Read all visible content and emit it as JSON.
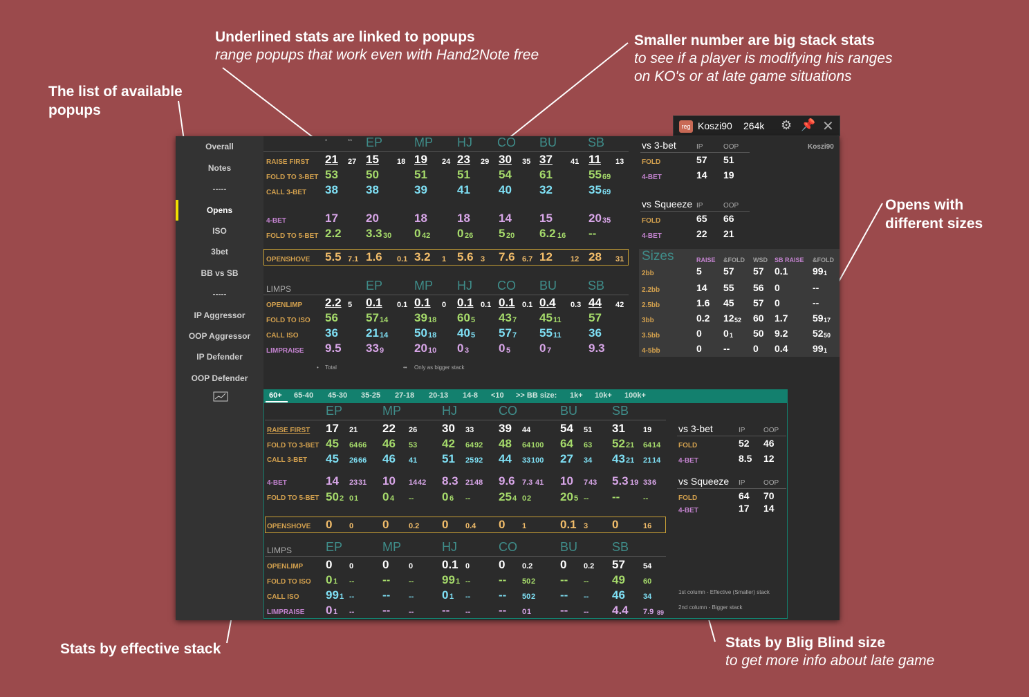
{
  "annotations": {
    "popups": {
      "title": "The list of available popups"
    },
    "underlined": {
      "title": "Underlined stats are linked to popups",
      "sub": "range popups that work even with Hand2Note free"
    },
    "smaller": {
      "title": "Smaller number are big stack stats",
      "sub1": "to see if a player is modifying his ranges",
      "sub2": "on KO's or at late game situations"
    },
    "opens": {
      "title1": "Opens with",
      "title2": "different sizes"
    },
    "effective": {
      "title": "Stats by effective stack"
    },
    "bbsize": {
      "title": "Stats by Blig Blind size",
      "sub": "to get more info about late game"
    }
  },
  "header": {
    "badge": "reg",
    "name": "Koszi90",
    "stack": "264k"
  },
  "sidebar": [
    "Overall",
    "Notes",
    "-----",
    "Opens",
    "ISO",
    "3bet",
    "BB vs SB",
    "-----",
    "IP Aggressor",
    "OOP Aggressor",
    "IP Defender",
    "OOP Defender"
  ],
  "top": {
    "marks": [
      "*",
      "**"
    ],
    "positions": [
      "EP",
      "MP",
      "HJ",
      "CO",
      "BU",
      "SB"
    ],
    "labels": {
      "rf": "RAISE FIRST",
      "f3": "FOLD TO 3-BET",
      "c3": "CALL 3-BET",
      "b4": "4-BET",
      "f5": "FOLD TO 5-BET",
      "os": "OPENSHOVE",
      "limps": "LIMPS",
      "ol": "OPENLIMP",
      "fi": "FOLD TO ISO",
      "ci": "CALL ISO",
      "lr": "LIMPRAISE"
    },
    "rf": [
      "21",
      "27",
      "15",
      "18",
      "19",
      "24",
      "23",
      "29",
      "30",
      "35",
      "37",
      "41",
      "11",
      "13"
    ],
    "f3": [
      "53",
      "50",
      "51",
      "51",
      "54",
      "61",
      "55",
      "69"
    ],
    "c3": [
      "38",
      "38",
      "39",
      "41",
      "40",
      "32",
      "35",
      "69"
    ],
    "b4": [
      "17",
      "20",
      "18",
      "18",
      "14",
      "15",
      "20",
      "35"
    ],
    "f5": [
      "2.2",
      "3.3",
      "30",
      "0",
      "42",
      "0",
      "26",
      "5",
      "20",
      "6.2",
      "16",
      "--"
    ],
    "os": [
      "5.5",
      "7.1",
      "1.6",
      "0.1",
      "3.2",
      "1",
      "5.6",
      "3",
      "7.6",
      "6.7",
      "12",
      "12",
      "28",
      "31"
    ],
    "ol": [
      "2.2",
      "5",
      "0.1",
      "0.1",
      "0.1",
      "0",
      "0.1",
      "0.1",
      "0.1",
      "0.1",
      "0.4",
      "0.3",
      "44",
      "42"
    ],
    "fi": [
      "56",
      "57",
      "14",
      "39",
      "18",
      "60",
      "5",
      "43",
      "7",
      "45",
      "11",
      "57"
    ],
    "ci": [
      "36",
      "21",
      "14",
      "50",
      "18",
      "40",
      "5",
      "57",
      "7",
      "55",
      "11",
      "36"
    ],
    "lr": [
      "9.5",
      "33",
      "9",
      "20",
      "10",
      "0",
      "3",
      "0",
      "5",
      "0",
      "7",
      "9.3"
    ],
    "foot1": "Total",
    "foot2": "Only as bigger stack"
  },
  "right": {
    "who": "Koszi90",
    "v3": {
      "title": "vs 3-bet",
      "ip": "IP",
      "oop": "OOP",
      "fold": "FOLD",
      "b4": "4-BET",
      "r1": [
        "57",
        "51"
      ],
      "r2": [
        "14",
        "19"
      ]
    },
    "vs": {
      "title": "vs Squeeze",
      "ip": "IP",
      "oop": "OOP",
      "fold": "FOLD",
      "b4": "4-BET",
      "r1": [
        "65",
        "66"
      ],
      "r2": [
        "22",
        "21"
      ]
    },
    "sizes": {
      "title": "Sizes",
      "cols": [
        "RAISE",
        "&FOLD",
        "WSD",
        "SB RAISE",
        "&FOLD"
      ],
      "rows": [
        {
          "l": "2bb",
          "v": [
            "5",
            "57",
            "57",
            "0.1",
            "99"
          ],
          "s": "1"
        },
        {
          "l": "2.2bb",
          "v": [
            "14",
            "55",
            "56",
            "0",
            "--"
          ],
          "s": ""
        },
        {
          "l": "2.5bb",
          "v": [
            "1.6",
            "45",
            "57",
            "0",
            "--"
          ],
          "s": ""
        },
        {
          "l": "3bb",
          "v": [
            "0.2",
            "12",
            "60",
            "1.7",
            "59"
          ],
          "s": "17",
          "s2": "52"
        },
        {
          "l": "3.5bb",
          "v": [
            "0",
            "0",
            "50",
            "9.2",
            "52"
          ],
          "s": "50",
          "s2": "1"
        },
        {
          "l": "4-5bb",
          "v": [
            "0",
            "--",
            "0",
            "0.4",
            "99"
          ],
          "s": "1"
        }
      ]
    }
  },
  "tabs": [
    "60+",
    "65-40",
    "45-30",
    "35-25",
    "27-18",
    "20-13",
    "14-8",
    "<10",
    ">> BB size:",
    "1k+",
    "10k+",
    "100k+"
  ],
  "bottom": {
    "positions": [
      "EP",
      "MP",
      "HJ",
      "CO",
      "BU",
      "SB"
    ],
    "rf": [
      "17",
      "21",
      "22",
      "26",
      "30",
      "33",
      "39",
      "44",
      "54",
      "51",
      "31",
      "19"
    ],
    "f3": [
      "45",
      "64",
      "66",
      "46",
      "53",
      "42",
      "64",
      "92",
      "48",
      "64",
      "100",
      "64",
      "63",
      "52",
      "21",
      "64",
      "14"
    ],
    "c3": [
      "45",
      "26",
      "66",
      "46",
      "41",
      "51",
      "25",
      "92",
      "44",
      "33",
      "100",
      "27",
      "34",
      "43",
      "21",
      "21",
      "14"
    ],
    "b4": [
      "14",
      "23",
      "31",
      "10",
      "14",
      "42",
      "8.3",
      "21",
      "48",
      "9.6",
      "7.3",
      "41",
      "10",
      "7",
      "43",
      "5.3",
      "19",
      "33",
      "6"
    ],
    "f5": [
      "50",
      "2",
      "0",
      "1",
      "0",
      "4",
      "--",
      "0",
      "6",
      "--",
      "25",
      "4",
      "0",
      "2",
      "20",
      "5",
      "--",
      "--",
      "--"
    ],
    "os": [
      "0",
      "0",
      "0",
      "0.2",
      "0",
      "0.4",
      "0",
      "1",
      "0.1",
      "3",
      "0",
      "16"
    ],
    "ol": [
      "0",
      "0",
      "0",
      "0",
      "0.1",
      "0",
      "0",
      "0.2",
      "0",
      "0.2",
      "57",
      "54"
    ],
    "fi": [
      "0",
      "1",
      "--",
      "--",
      "--",
      "99",
      "1",
      "--",
      "--",
      "50",
      "2",
      "--",
      "--",
      "49",
      "60"
    ],
    "ci": [
      "99",
      "1",
      "--",
      "--",
      "--",
      "0",
      "1",
      "--",
      "--",
      "50",
      "2",
      "--",
      "--",
      "46",
      "34"
    ],
    "lr": [
      "0",
      "1",
      "--",
      "--",
      "--",
      "--",
      "--",
      "--",
      "0",
      "1",
      "--",
      "--",
      "4.4",
      "7.9",
      "89"
    ],
    "v3": {
      "r1": [
        "52",
        "46"
      ],
      "r2": [
        "8.5",
        "12"
      ]
    },
    "vs": {
      "r1": [
        "64",
        "70"
      ],
      "r2": [
        "17",
        "14"
      ]
    },
    "note1": "1st column - Effective (Smaller) stack",
    "note2": "2nd column - Bigger stack"
  }
}
